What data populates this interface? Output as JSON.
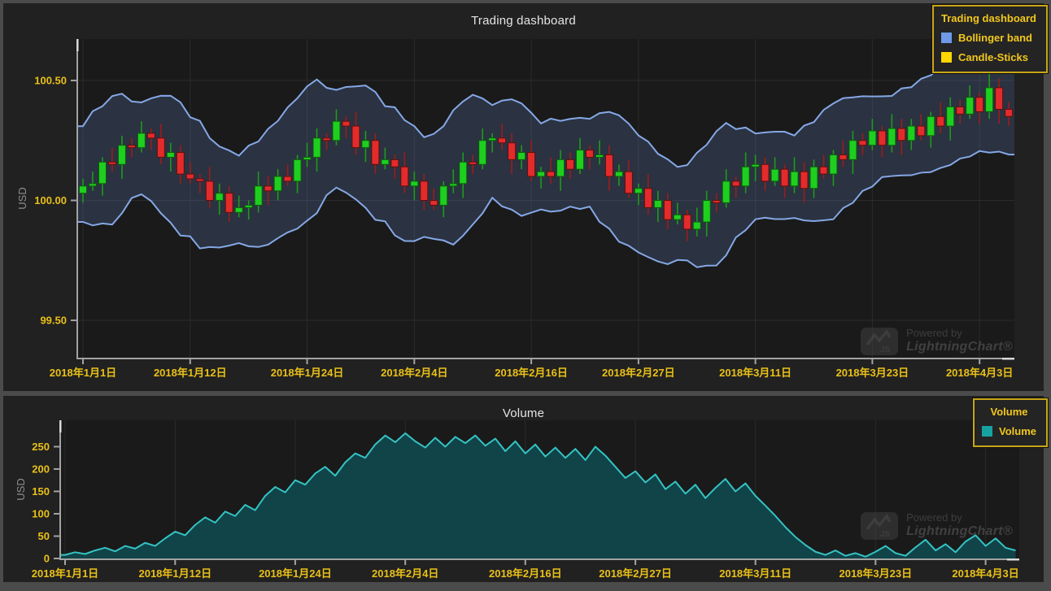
{
  "page": {
    "background": "#4b4b4b",
    "panel_background": "#212121",
    "plot_background": "#1a1a1a"
  },
  "price_chart": {
    "title": "Trading dashboard",
    "legend": {
      "title": "Trading dashboard",
      "items": [
        {
          "label": "Bollinger band",
          "color": "#6e9ae8"
        },
        {
          "label": "Candle-Sticks",
          "color": "#ffd700"
        }
      ]
    },
    "y_axis_title": "USD",
    "watermark": {
      "powered_by": "Powered by",
      "brand": "LightningChart®",
      "logo_text": "JS"
    }
  },
  "volume_chart": {
    "title": "Volume",
    "legend": {
      "title": "Volume",
      "items": [
        {
          "label": "Volume",
          "color": "#17a2a2"
        }
      ]
    },
    "y_axis_title": "USD",
    "watermark": {
      "powered_by": "Powered by",
      "brand": "LightningChart®",
      "logo_text": "JS"
    }
  },
  "colors": {
    "tick_label": "#e9c018",
    "axis": "#a3a3a3",
    "grid": "#2b2b2b",
    "band_fill": "rgba(105,136,205,0.22)",
    "band_stroke": "#85a8e6",
    "candle_up_fill": "#1fcf1f",
    "candle_up_stroke": "#0c5c0c",
    "candle_up_wick": "#1d9b1d",
    "candle_down_fill": "#e42b2b",
    "candle_down_stroke": "#5c1010",
    "candle_down_wick": "#9b1d1d",
    "volume_line": "#35c3c3",
    "volume_fill": "rgba(15,72,76,0.92)",
    "legend_border": "#c9a516",
    "legend_text": "#f2c71c"
  },
  "chart_data": [
    {
      "type": "candlestick",
      "title": "Trading dashboard",
      "ylabel": "USD",
      "ylim": [
        99.34,
        100.67
      ],
      "y_tick_values": [
        100.5,
        100.0,
        99.5
      ],
      "y_tick_labels": [
        "100.50",
        "100.00",
        "99.50"
      ],
      "x_tick_labels": [
        "2018年1月1日",
        "2018年1月12日",
        "2018年1月24日",
        "2018年2月4日",
        "2018年2月16日",
        "2018年2月27日",
        "2018年3月11日",
        "2018年3月23日",
        "2018年4月3日"
      ],
      "x_tick_days": [
        0,
        11,
        23,
        34,
        46,
        57,
        69,
        81,
        92
      ],
      "series": [
        {
          "name": "Candle-Sticks",
          "ohlc": [
            [
              100.03,
              100.09,
              99.99,
              100.06
            ],
            [
              100.06,
              100.12,
              100.04,
              100.07
            ],
            [
              100.07,
              100.18,
              100.02,
              100.16
            ],
            [
              100.16,
              100.22,
              100.12,
              100.15
            ],
            [
              100.15,
              100.27,
              100.09,
              100.23
            ],
            [
              100.23,
              100.26,
              100.18,
              100.22
            ],
            [
              100.22,
              100.33,
              100.2,
              100.28
            ],
            [
              100.28,
              100.3,
              100.21,
              100.26
            ],
            [
              100.26,
              100.32,
              100.15,
              100.18
            ],
            [
              100.18,
              100.24,
              100.12,
              100.2
            ],
            [
              100.2,
              100.23,
              100.07,
              100.11
            ],
            [
              100.11,
              100.16,
              100.07,
              100.09
            ],
            [
              100.09,
              100.11,
              100.03,
              100.08
            ],
            [
              100.08,
              100.14,
              99.97,
              100.0
            ],
            [
              100.0,
              100.07,
              99.94,
              100.03
            ],
            [
              100.03,
              100.06,
              99.91,
              99.95
            ],
            [
              99.95,
              100.02,
              99.93,
              99.97
            ],
            [
              99.97,
              100.0,
              99.92,
              99.98
            ],
            [
              99.98,
              100.12,
              99.95,
              100.06
            ],
            [
              100.06,
              100.1,
              99.98,
              100.04
            ],
            [
              100.04,
              100.13,
              100.0,
              100.1
            ],
            [
              100.1,
              100.15,
              100.06,
              100.08
            ],
            [
              100.08,
              100.19,
              100.03,
              100.17
            ],
            [
              100.17,
              100.24,
              100.14,
              100.18
            ],
            [
              100.18,
              100.3,
              100.12,
              100.26
            ],
            [
              100.26,
              100.28,
              100.21,
              100.25
            ],
            [
              100.25,
              100.38,
              100.23,
              100.33
            ],
            [
              100.33,
              100.35,
              100.26,
              100.31
            ],
            [
              100.31,
              100.37,
              100.19,
              100.22
            ],
            [
              100.22,
              100.29,
              100.16,
              100.25
            ],
            [
              100.25,
              100.28,
              100.11,
              100.15
            ],
            [
              100.15,
              100.22,
              100.13,
              100.17
            ],
            [
              100.17,
              100.19,
              100.09,
              100.14
            ],
            [
              100.14,
              100.2,
              100.03,
              100.06
            ],
            [
              100.06,
              100.12,
              100.0,
              100.08
            ],
            [
              100.08,
              100.11,
              99.96,
              100.0
            ],
            [
              100.0,
              100.05,
              99.96,
              99.98
            ],
            [
              99.98,
              100.08,
              99.93,
              100.06
            ],
            [
              100.06,
              100.13,
              100.03,
              100.07
            ],
            [
              100.07,
              100.2,
              100.01,
              100.16
            ],
            [
              100.16,
              100.19,
              100.11,
              100.15
            ],
            [
              100.15,
              100.3,
              100.13,
              100.25
            ],
            [
              100.25,
              100.28,
              100.2,
              100.26
            ],
            [
              100.26,
              100.32,
              100.21,
              100.24
            ],
            [
              100.24,
              100.28,
              100.11,
              100.17
            ],
            [
              100.17,
              100.23,
              100.13,
              100.2
            ],
            [
              100.2,
              100.25,
              100.08,
              100.1
            ],
            [
              100.1,
              100.14,
              100.05,
              100.12
            ],
            [
              100.12,
              100.18,
              100.07,
              100.1
            ],
            [
              100.1,
              100.21,
              100.04,
              100.17
            ],
            [
              100.17,
              100.2,
              100.09,
              100.13
            ],
            [
              100.13,
              100.26,
              100.11,
              100.21
            ],
            [
              100.21,
              100.23,
              100.13,
              100.18
            ],
            [
              100.18,
              100.25,
              100.15,
              100.19
            ],
            [
              100.19,
              100.23,
              100.04,
              100.1
            ],
            [
              100.1,
              100.15,
              100.06,
              100.12
            ],
            [
              100.12,
              100.17,
              100.01,
              100.03
            ],
            [
              100.03,
              100.07,
              99.98,
              100.05
            ],
            [
              100.05,
              100.11,
              99.94,
              99.97
            ],
            [
              99.97,
              100.04,
              99.91,
              100.0
            ],
            [
              100.0,
              100.03,
              99.88,
              99.92
            ],
            [
              99.92,
              99.99,
              99.9,
              99.94
            ],
            [
              99.94,
              99.96,
              99.83,
              99.88
            ],
            [
              99.88,
              99.97,
              99.85,
              99.91
            ],
            [
              99.91,
              100.04,
              99.85,
              100.0
            ],
            [
              100.0,
              100.03,
              99.95,
              99.99
            ],
            [
              99.99,
              100.13,
              99.97,
              100.08
            ],
            [
              100.08,
              100.1,
              100.01,
              100.06
            ],
            [
              100.06,
              100.2,
              100.03,
              100.14
            ],
            [
              100.14,
              100.19,
              100.08,
              100.15
            ],
            [
              100.15,
              100.18,
              100.04,
              100.08
            ],
            [
              100.08,
              100.18,
              100.06,
              100.13
            ],
            [
              100.13,
              100.15,
              100.01,
              100.06
            ],
            [
              100.06,
              100.18,
              100.03,
              100.12
            ],
            [
              100.12,
              100.16,
              99.99,
              100.05
            ],
            [
              100.05,
              100.17,
              100.01,
              100.14
            ],
            [
              100.14,
              100.19,
              100.09,
              100.11
            ],
            [
              100.11,
              100.21,
              100.06,
              100.19
            ],
            [
              100.19,
              100.25,
              100.14,
              100.17
            ],
            [
              100.17,
              100.29,
              100.11,
              100.25
            ],
            [
              100.25,
              100.28,
              100.19,
              100.23
            ],
            [
              100.23,
              100.34,
              100.21,
              100.29
            ],
            [
              100.29,
              100.31,
              100.18,
              100.23
            ],
            [
              100.23,
              100.36,
              100.2,
              100.3
            ],
            [
              100.3,
              100.34,
              100.19,
              100.25
            ],
            [
              100.25,
              100.34,
              100.21,
              100.31
            ],
            [
              100.31,
              100.36,
              100.25,
              100.27
            ],
            [
              100.27,
              100.37,
              100.22,
              100.35
            ],
            [
              100.35,
              100.41,
              100.28,
              100.31
            ],
            [
              100.31,
              100.43,
              100.25,
              100.39
            ],
            [
              100.39,
              100.42,
              100.32,
              100.36
            ],
            [
              100.36,
              100.48,
              100.34,
              100.43
            ],
            [
              100.43,
              100.45,
              100.32,
              100.37
            ],
            [
              100.37,
              100.53,
              100.34,
              100.47
            ],
            [
              100.47,
              100.51,
              100.32,
              100.38
            ],
            [
              100.38,
              100.41,
              100.31,
              100.35
            ]
          ]
        },
        {
          "name": "Bollinger band",
          "derived_from": "Candle-Sticks closes",
          "period": 7,
          "k": 2.2,
          "base_halfwidth": 0.1,
          "min_halfwidth": 0.13,
          "max_halfwidth": 0.28
        }
      ]
    },
    {
      "type": "area",
      "title": "Volume",
      "ylabel": "USD",
      "ylim": [
        0,
        309
      ],
      "y_tick_values": [
        0,
        50,
        100,
        150,
        200,
        250
      ],
      "y_tick_labels": [
        "0",
        "50",
        "100",
        "150",
        "200",
        "250"
      ],
      "x_tick_labels": [
        "2018年1月1日",
        "2018年1月12日",
        "2018年1月24日",
        "2018年2月4日",
        "2018年2月16日",
        "2018年2月27日",
        "2018年3月11日",
        "2018年3月23日",
        "2018年4月3日"
      ],
      "x_tick_days": [
        0,
        11,
        23,
        34,
        46,
        57,
        69,
        81,
        92
      ],
      "series": [
        {
          "name": "Volume",
          "values": [
            8,
            14,
            10,
            18,
            24,
            16,
            28,
            22,
            35,
            28,
            45,
            60,
            52,
            75,
            92,
            80,
            105,
            95,
            120,
            108,
            140,
            160,
            148,
            175,
            165,
            190,
            205,
            185,
            215,
            235,
            225,
            255,
            275,
            260,
            280,
            262,
            248,
            270,
            250,
            272,
            258,
            275,
            252,
            268,
            240,
            262,
            235,
            255,
            228,
            248,
            225,
            245,
            220,
            250,
            230,
            205,
            180,
            195,
            170,
            188,
            155,
            172,
            145,
            165,
            135,
            158,
            178,
            150,
            168,
            140,
            118,
            95,
            70,
            48,
            30,
            15,
            8,
            18,
            6,
            12,
            4,
            15,
            28,
            12,
            6,
            25,
            42,
            18,
            32,
            14,
            38,
            52,
            28,
            45,
            24,
            18
          ]
        }
      ]
    }
  ]
}
